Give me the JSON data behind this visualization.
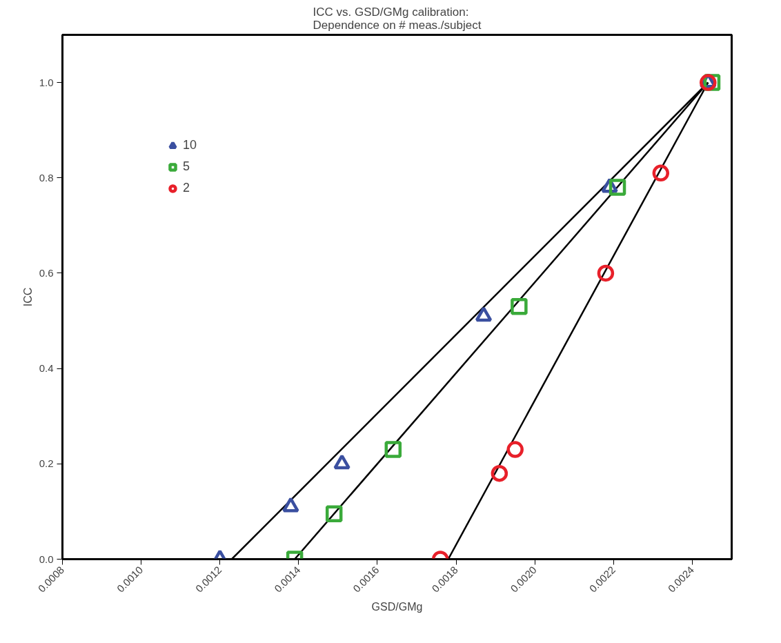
{
  "chart_data": {
    "type": "scatter",
    "title": "ICC vs. GSD/GMg calibration:\nDependence on # meas./subject",
    "xlabel": "GSD/GMg",
    "ylabel": "ICC",
    "xlim": [
      0.0008,
      0.0025
    ],
    "ylim": [
      0,
      1.1
    ],
    "xticks": [
      {
        "value": 0.0008,
        "label": "0.0008"
      },
      {
        "value": 0.001,
        "label": "0.0010"
      },
      {
        "value": 0.0012,
        "label": "0.0012"
      },
      {
        "value": 0.0014,
        "label": "0.0014"
      },
      {
        "value": 0.0016,
        "label": "0.0016"
      },
      {
        "value": 0.0018,
        "label": "0.0018"
      },
      {
        "value": 0.002,
        "label": "0.0020"
      },
      {
        "value": 0.0022,
        "label": "0.0022"
      },
      {
        "value": 0.0024,
        "label": "0.0024"
      }
    ],
    "yticks": [
      {
        "value": 0,
        "label": "0.0"
      },
      {
        "value": 0.2,
        "label": "0.2"
      },
      {
        "value": 0.4,
        "label": "0.4"
      },
      {
        "value": 0.6,
        "label": "0.6"
      },
      {
        "value": 0.8,
        "label": "0.8"
      },
      {
        "value": 1,
        "label": "1.0"
      }
    ],
    "grid": false,
    "legend": "top left",
    "series": [
      {
        "type": "line",
        "color": "#000000",
        "marker": "none",
        "x": [
          0.00123,
          0.00244
        ],
        "values": [
          0,
          1
        ]
      },
      {
        "type": "line",
        "color": "#000000",
        "marker": "none",
        "x": [
          0.00139,
          0.00244
        ],
        "values": [
          0,
          1
        ]
      },
      {
        "type": "line",
        "color": "#000000",
        "marker": "none",
        "x": [
          0.00178,
          0.00244
        ],
        "values": [
          0,
          1
        ]
      },
      {
        "name": "10",
        "color": "#3a4fa0",
        "marker": "triangle",
        "x": [
          0.0012,
          0.00138,
          0.00151,
          0.00187,
          0.00219,
          0.00244
        ],
        "values": [
          0,
          0.11,
          0.2,
          0.51,
          0.78,
          1.0
        ]
      },
      {
        "name": "5",
        "color": "#3aaa3a",
        "marker": "square",
        "x": [
          0.00139,
          0.00149,
          0.00164,
          0.00196,
          0.00221,
          0.00245
        ],
        "values": [
          0,
          0.095,
          0.23,
          0.53,
          0.78,
          1.0
        ]
      },
      {
        "name": "2",
        "color": "#e8202a",
        "marker": "circle",
        "x": [
          0.00176,
          0.00191,
          0.00195,
          0.00218,
          0.00232,
          0.00244
        ],
        "values": [
          0,
          0.18,
          0.23,
          0.6,
          0.81,
          1.0
        ]
      }
    ]
  }
}
